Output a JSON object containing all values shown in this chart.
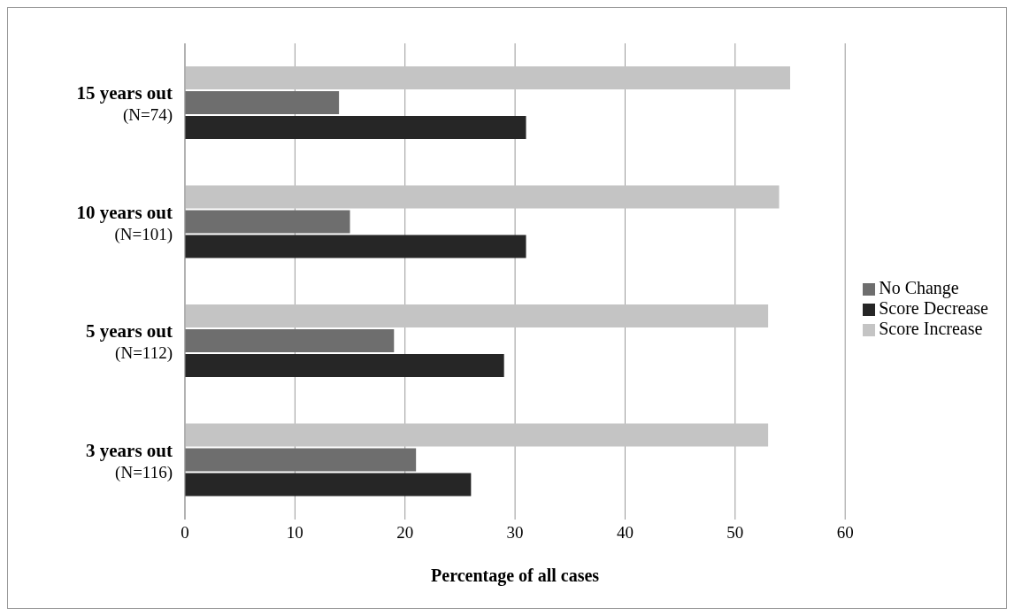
{
  "chart_data": {
    "type": "bar",
    "orientation": "horizontal",
    "xlabel": "Percentage of all cases",
    "categories": [
      "15 years out\n(N=74)",
      "10 years out\n(N=101)",
      "5 years out\n(N=112)",
      "3 years out\n(N=116)"
    ],
    "series": [
      {
        "name": "Score Increase",
        "color": "#c4c4c4",
        "values": [
          55,
          54,
          53,
          53
        ]
      },
      {
        "name": "No Change",
        "color": "#6e6e6e",
        "values": [
          14,
          15,
          19,
          21
        ]
      },
      {
        "name": "Score Decrease",
        "color": "#262626",
        "values": [
          31,
          31,
          29,
          26
        ]
      }
    ],
    "xlim": [
      0,
      60
    ],
    "xticks": [
      0,
      10,
      20,
      30,
      40,
      50,
      60
    ],
    "grid": "x",
    "legend": "right"
  }
}
